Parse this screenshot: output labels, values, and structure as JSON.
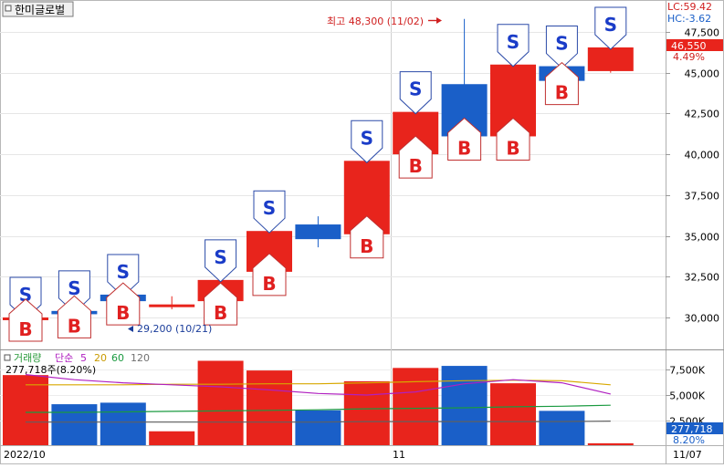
{
  "stock_name": "한미글로벌",
  "price_box": {
    "lc_text": "LC:59.42",
    "hc_text": "HC:-3.62",
    "current_price": "46,550",
    "change_pct": "4.49%"
  },
  "annotations": {
    "high_text": "최고 48,300 (11/02)",
    "low_text": "29,200 (10/21)"
  },
  "volume_header": {
    "label": "거래량",
    "ma_label": "단순",
    "periods": [
      "5",
      "20",
      "60",
      "120"
    ],
    "current_text": "277,718주(8.20%)",
    "current_value": "277,718",
    "current_pct": "8.20%"
  },
  "x_axis": {
    "start_label": "2022/10",
    "month_label": "11",
    "end_label": "11/07"
  },
  "colors": {
    "up": "#e8241c",
    "down": "#1a5fc8",
    "ma5": "#b020c0",
    "ma20": "#d8a800",
    "ma60": "#1a9a40",
    "ma120": "#606060"
  },
  "chart_data": {
    "type": "candlestick",
    "price_axis": {
      "ticks": [
        "47,500",
        "45,000",
        "42,500",
        "40,000",
        "37,500",
        "35,000",
        "32,500",
        "30,000"
      ],
      "tick_values": [
        47500,
        45000,
        42500,
        40000,
        37500,
        35000,
        32500,
        30000
      ]
    },
    "volume_axis": {
      "ticks": [
        "7,500K",
        "5,000K",
        "2,500K"
      ],
      "tick_values": [
        7500,
        5000,
        2500
      ]
    },
    "candles": [
      {
        "open": 30000,
        "high": 30000,
        "low": 29200,
        "close": 30000,
        "volume": 6950,
        "buy": true,
        "sell": true
      },
      {
        "open": 30400,
        "high": 30500,
        "low": 29900,
        "close": 30200,
        "volume": 4100,
        "buy": true,
        "sell": true
      },
      {
        "open": 31400,
        "high": 31500,
        "low": 31000,
        "close": 31000,
        "volume": 4250,
        "buy": true,
        "sell": true
      },
      {
        "open": 30800,
        "high": 31300,
        "low": 30500,
        "close": 30800,
        "volume": 1450,
        "buy": false,
        "sell": false
      },
      {
        "open": 31000,
        "high": 32400,
        "low": 30900,
        "close": 32300,
        "volume": 8350,
        "buy": true,
        "sell": true
      },
      {
        "open": 32800,
        "high": 35400,
        "low": 32500,
        "close": 35300,
        "volume": 7400,
        "buy": true,
        "sell": true
      },
      {
        "open": 35700,
        "high": 36200,
        "low": 34300,
        "close": 34800,
        "volume": 3500,
        "buy": false,
        "sell": false
      },
      {
        "open": 35100,
        "high": 39600,
        "low": 34700,
        "close": 39600,
        "volume": 6350,
        "buy": true,
        "sell": true
      },
      {
        "open": 40000,
        "high": 42600,
        "low": 39100,
        "close": 42600,
        "volume": 7650,
        "buy": true,
        "sell": true
      },
      {
        "open": 44300,
        "high": 48300,
        "low": 41100,
        "close": 41100,
        "volume": 7850,
        "buy": true,
        "sell": false
      },
      {
        "open": 41100,
        "high": 45600,
        "low": 40400,
        "close": 45500,
        "volume": 6150,
        "buy": true,
        "sell": true
      },
      {
        "open": 45400,
        "high": 45600,
        "low": 44500,
        "close": 44500,
        "volume": 3450,
        "buy": true,
        "sell": true
      },
      {
        "open": 45100,
        "high": 46700,
        "low": 45000,
        "close": 46550,
        "volume": 278,
        "buy": false,
        "sell": true
      }
    ],
    "volume_ma": {
      "ma5": [
        7000,
        6500,
        6200,
        6000,
        5800,
        5500,
        5150,
        5000,
        5300,
        6100,
        6500,
        6200,
        5100
      ],
      "ma20": [
        6000,
        6000,
        6000,
        6050,
        6050,
        6100,
        6100,
        6200,
        6300,
        6400,
        6450,
        6400,
        6000
      ],
      "ma60": [
        3300,
        3300,
        3350,
        3400,
        3450,
        3500,
        3550,
        3650,
        3700,
        3750,
        3850,
        3900,
        4000
      ],
      "ma120": [
        2350,
        2350,
        2350,
        2350,
        2350,
        2350,
        2350,
        2400,
        2400,
        2400,
        2400,
        2400,
        2450
      ]
    }
  }
}
